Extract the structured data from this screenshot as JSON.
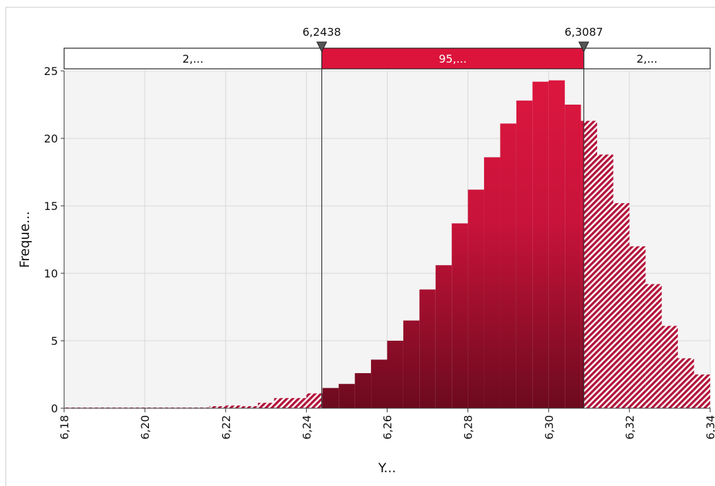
{
  "chart_data": {
    "type": "bar",
    "title": "",
    "xlabel": "Y...",
    "ylabel": "Freque...",
    "xlim": [
      6.18,
      6.34
    ],
    "ylim": [
      0,
      25
    ],
    "grid": true,
    "x_ticks": [
      "6,18",
      "6,20",
      "6,22",
      "6,24",
      "6,26",
      "6,28",
      "6,30",
      "6,32",
      "6,34"
    ],
    "y_ticks": [
      "0",
      "5",
      "10",
      "15",
      "20",
      "25"
    ],
    "bin_width": 0.004,
    "bins": [
      {
        "x0": 6.18,
        "value": 0.05
      },
      {
        "x0": 6.184,
        "value": 0.05
      },
      {
        "x0": 6.188,
        "value": 0.05
      },
      {
        "x0": 6.192,
        "value": 0.05
      },
      {
        "x0": 6.196,
        "value": 0.05
      },
      {
        "x0": 6.2,
        "value": 0.05
      },
      {
        "x0": 6.204,
        "value": 0.05
      },
      {
        "x0": 6.208,
        "value": 0.05
      },
      {
        "x0": 6.212,
        "value": 0.05
      },
      {
        "x0": 6.216,
        "value": 0.15
      },
      {
        "x0": 6.22,
        "value": 0.2
      },
      {
        "x0": 6.224,
        "value": 0.15
      },
      {
        "x0": 6.228,
        "value": 0.4
      },
      {
        "x0": 6.232,
        "value": 0.75
      },
      {
        "x0": 6.236,
        "value": 0.75
      },
      {
        "x0": 6.24,
        "value": 1.1
      },
      {
        "x0": 6.244,
        "value": 1.5
      },
      {
        "x0": 6.248,
        "value": 1.8
      },
      {
        "x0": 6.252,
        "value": 2.6
      },
      {
        "x0": 6.256,
        "value": 3.6
      },
      {
        "x0": 6.26,
        "value": 5.0
      },
      {
        "x0": 6.264,
        "value": 6.5
      },
      {
        "x0": 6.268,
        "value": 8.8
      },
      {
        "x0": 6.272,
        "value": 10.6
      },
      {
        "x0": 6.276,
        "value": 13.7
      },
      {
        "x0": 6.28,
        "value": 16.2
      },
      {
        "x0": 6.284,
        "value": 18.6
      },
      {
        "x0": 6.288,
        "value": 21.1
      },
      {
        "x0": 6.292,
        "value": 22.8
      },
      {
        "x0": 6.296,
        "value": 24.2
      },
      {
        "x0": 6.3,
        "value": 24.3
      },
      {
        "x0": 6.304,
        "value": 22.5
      },
      {
        "x0": 6.308,
        "value": 21.3
      },
      {
        "x0": 6.312,
        "value": 18.8
      },
      {
        "x0": 6.316,
        "value": 15.2
      },
      {
        "x0": 6.32,
        "value": 12.0
      },
      {
        "x0": 6.324,
        "value": 9.2
      },
      {
        "x0": 6.328,
        "value": 6.1
      },
      {
        "x0": 6.332,
        "value": 3.7
      },
      {
        "x0": 6.336,
        "value": 2.5
      }
    ],
    "markers": [
      {
        "value": 6.2438,
        "label": "6,2438"
      },
      {
        "value": 6.3087,
        "label": "6,3087"
      }
    ],
    "bands": [
      {
        "label": "2,...",
        "region": "left"
      },
      {
        "label": "95,...",
        "region": "middle"
      },
      {
        "label": "2,...",
        "region": "right"
      }
    ],
    "colors": {
      "bar_light": "#dd173f",
      "bar_dark": "#6c0a1e",
      "hatch": "#b3133a",
      "plot_bg": "#f4f4f4",
      "grid": "#d7d7d7",
      "band_mid": "#dc143c",
      "band_side": "#ffffff"
    }
  }
}
